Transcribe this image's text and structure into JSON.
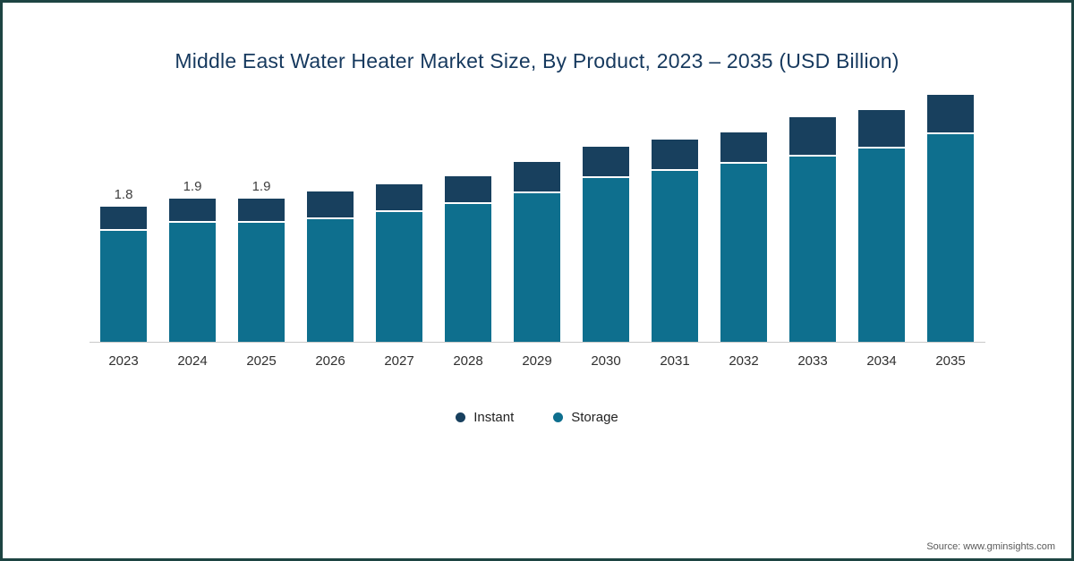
{
  "title": "Middle East Water Heater Market Size, By Product, 2023 – 2035 (USD Billion)",
  "source": "Source: www.gminsights.com",
  "colors": {
    "instant": "#18405e",
    "storage": "#0e6f8e",
    "border": "#1d4442"
  },
  "legend": [
    {
      "label": "Instant",
      "color": "#18405e"
    },
    {
      "label": "Storage",
      "color": "#0e6f8e"
    }
  ],
  "chart_data": {
    "type": "bar",
    "stacked": true,
    "title": "Middle East Water Heater Market Size, By Product, 2023 – 2035 (USD Billion)",
    "xlabel": "",
    "ylabel": "USD Billion",
    "ylim": [
      0,
      3.5
    ],
    "grid": false,
    "legend_position": "bottom",
    "categories": [
      "2023",
      "2024",
      "2025",
      "2026",
      "2027",
      "2028",
      "2029",
      "2030",
      "2031",
      "2032",
      "2033",
      "2034",
      "2035"
    ],
    "series": [
      {
        "name": "Storage",
        "color": "#0e6f8e",
        "values": [
          1.5,
          1.6,
          1.6,
          1.65,
          1.75,
          1.85,
          2.0,
          2.2,
          2.3,
          2.4,
          2.5,
          2.6,
          2.8
        ]
      },
      {
        "name": "Instant",
        "color": "#18405e",
        "values": [
          0.3,
          0.3,
          0.3,
          0.35,
          0.35,
          0.35,
          0.4,
          0.4,
          0.4,
          0.4,
          0.5,
          0.5,
          0.5
        ]
      }
    ],
    "totals": [
      1.8,
      1.9,
      1.9,
      2.0,
      2.1,
      2.2,
      2.4,
      2.6,
      2.7,
      2.8,
      3.0,
      3.1,
      3.3
    ],
    "bar_labels": [
      "1.8",
      "1.9",
      "1.9",
      "",
      "",
      "",
      "",
      "",
      "",
      "",
      "",
      "",
      ""
    ]
  }
}
